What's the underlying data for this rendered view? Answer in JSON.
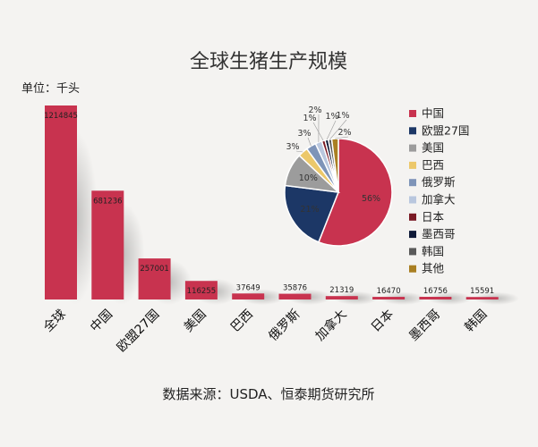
{
  "title": "全球生猪生产规模",
  "unit_label": "单位：千头",
  "source": "数据来源：USDA、恒泰期货研究所",
  "chart_data": [
    {
      "type": "bar",
      "categories": [
        "全球",
        "中国",
        "欧盟27国",
        "美国",
        "巴西",
        "俄罗斯",
        "加拿大",
        "日本",
        "墨西哥",
        "韩国"
      ],
      "values": [
        1214845,
        681236,
        257001,
        116255,
        37649,
        35876,
        21319,
        16470,
        16756,
        15591
      ],
      "value_labels": [
        "1214845",
        "681236",
        "257001",
        "116255",
        "37649",
        "35876",
        "21319",
        "16470",
        "16756",
        "15591"
      ],
      "color": "#c8334f",
      "ylim": [
        0,
        1214845
      ]
    },
    {
      "type": "pie",
      "labels": [
        "中国",
        "欧盟27国",
        "美国",
        "巴西",
        "俄罗斯",
        "加拿大",
        "日本",
        "墨西哥",
        "韩国",
        "其他"
      ],
      "values": [
        56,
        21,
        10,
        3,
        3,
        2,
        1,
        1,
        1,
        2
      ],
      "value_labels": [
        "56%",
        "21%",
        "10%",
        "3%",
        "3%",
        "2%",
        "1%",
        "1%",
        "1%",
        "2%"
      ],
      "colors": [
        "#c8334f",
        "#1c3766",
        "#9c9c9c",
        "#ecc86a",
        "#7e94b8",
        "#b9c7de",
        "#7a1a24",
        "#0f1a38",
        "#5a5a5a",
        "#a97f22"
      ],
      "legend_position": "right"
    }
  ]
}
